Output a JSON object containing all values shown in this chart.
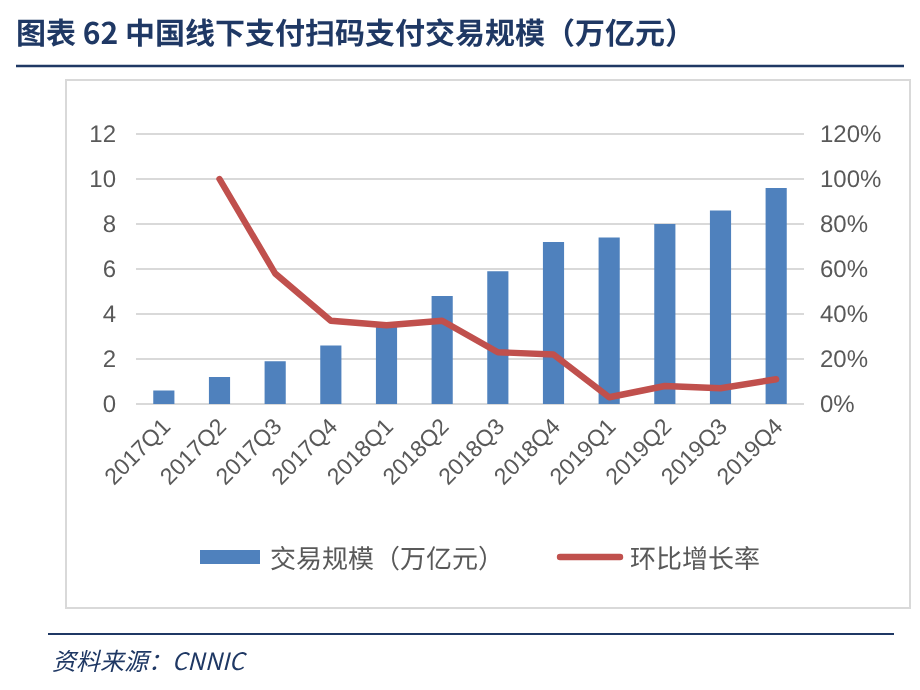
{
  "chart_data": {
    "type": "bar",
    "title": "图表 62   中国线下支付扫码支付交易规模（万亿元）",
    "categories": [
      "2017Q1",
      "2017Q2",
      "2017Q3",
      "2017Q4",
      "2018Q1",
      "2018Q2",
      "2018Q3",
      "2018Q4",
      "2019Q1",
      "2019Q2",
      "2019Q3",
      "2019Q4"
    ],
    "series": [
      {
        "name": "交易规模（万亿元）",
        "color": "#4f81bd",
        "values": [
          0.6,
          1.2,
          1.9,
          2.6,
          3.5,
          4.8,
          5.9,
          7.2,
          7.4,
          8.0,
          8.6,
          9.6
        ]
      },
      {
        "name": "环比增长率",
        "type": "line",
        "axis": "y2",
        "color": "#c0504d",
        "values": [
          null,
          100,
          58,
          37,
          35,
          37,
          23,
          22,
          3,
          8,
          7,
          11
        ]
      }
    ],
    "ylim": [
      0,
      12
    ],
    "yticks": [
      0,
      2,
      4,
      6,
      8,
      10,
      12
    ],
    "y2lim": [
      0,
      120
    ],
    "y2ticks": [
      {
        "value": 0,
        "label": "0%"
      },
      {
        "value": 20,
        "label": "20%"
      },
      {
        "value": 40,
        "label": "40%"
      },
      {
        "value": 60,
        "label": "60%"
      },
      {
        "value": 80,
        "label": "80%"
      },
      {
        "value": 100,
        "label": "100%"
      },
      {
        "value": 120,
        "label": "120%"
      }
    ],
    "grid": "y",
    "legend": "bottom",
    "marker": "none",
    "annotations": [
      "资料来源：CNNIC"
    ]
  }
}
